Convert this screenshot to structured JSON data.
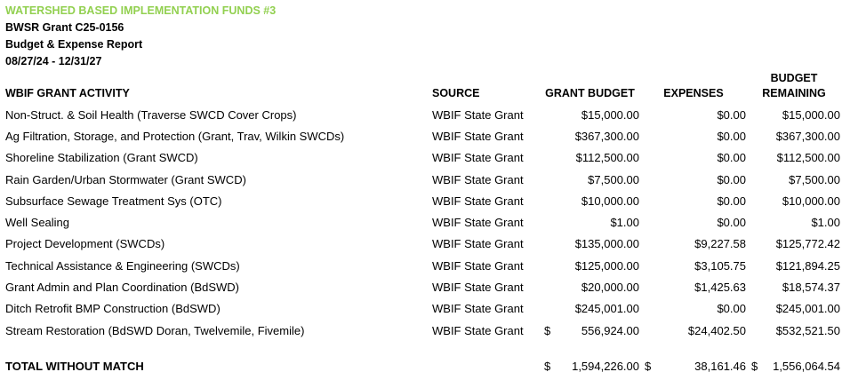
{
  "report": {
    "title": "WATERSHED BASED IMPLEMENTATION FUNDS #3",
    "grant_number": "BWSR Grant C25-0156",
    "report_name": "Budget & Expense Report",
    "date_range": "08/27/24 - 12/31/27"
  },
  "colors": {
    "title_green": "#92D050",
    "text": "#000000",
    "background": "#FFFFFF"
  },
  "table": {
    "columns": {
      "activity": "WBIF GRANT ACTIVITY",
      "source": "SOURCE",
      "grant_budget": "GRANT BUDGET",
      "expenses": "EXPENSES",
      "remaining_line1": "BUDGET",
      "remaining_line2": "REMAINING"
    },
    "rows": [
      {
        "activity": "Non-Struct. & Soil Health (Traverse SWCD Cover Crops)",
        "source": "WBIF State Grant",
        "grant_budget": "$15,000.00",
        "expenses": "$0.00",
        "remaining": "$15,000.00"
      },
      {
        "activity": "Ag Filtration, Storage, and Protection (Grant, Trav, Wilkin SWCDs)",
        "source": "WBIF State Grant",
        "grant_budget": "$367,300.00",
        "expenses": "$0.00",
        "remaining": "$367,300.00"
      },
      {
        "activity": "Shoreline Stabilization (Grant SWCD)",
        "source": "WBIF State Grant",
        "grant_budget": "$112,500.00",
        "expenses": "$0.00",
        "remaining": "$112,500.00"
      },
      {
        "activity": "Rain Garden/Urban Stormwater (Grant SWCD)",
        "source": "WBIF State Grant",
        "grant_budget": "$7,500.00",
        "expenses": "$0.00",
        "remaining": "$7,500.00"
      },
      {
        "activity": "Subsurface Sewage Treatment Sys (OTC)",
        "source": "WBIF State Grant",
        "grant_budget": "$10,000.00",
        "expenses": "$0.00",
        "remaining": "$10,000.00"
      },
      {
        "activity": "Well Sealing",
        "source": "WBIF State Grant",
        "grant_budget": "$1.00",
        "expenses": "$0.00",
        "remaining": "$1.00"
      },
      {
        "activity": "Project Development (SWCDs)",
        "source": "WBIF State Grant",
        "grant_budget": "$135,000.00",
        "expenses": "$9,227.58",
        "remaining": "$125,772.42"
      },
      {
        "activity": "Technical Assistance & Engineering (SWCDs)",
        "source": "WBIF State Grant",
        "grant_budget": "$125,000.00",
        "expenses": "$3,105.75",
        "remaining": "$121,894.25"
      },
      {
        "activity": "Grant Admin and Plan Coordination (BdSWD)",
        "source": "WBIF State Grant",
        "grant_budget": "$20,000.00",
        "expenses": "$1,425.63",
        "remaining": "$18,574.37"
      },
      {
        "activity": "Ditch Retrofit BMP Construction (BdSWD)",
        "source": "WBIF State Grant",
        "grant_budget": "$245,001.00",
        "expenses": "$0.00",
        "remaining": "$245,001.00"
      },
      {
        "activity": "Stream Restoration (BdSWD Doran, Twelvemile, Fivemile)",
        "source": "WBIF State Grant",
        "grant_budget_dollar": "$",
        "grant_budget_amount": "556,924.00",
        "expenses": "$24,402.50",
        "remaining": "$532,521.50"
      }
    ],
    "total": {
      "label": "TOTAL WITHOUT MATCH",
      "grant_budget_dollar": "$",
      "grant_budget_amount": "1,594,226.00",
      "expenses_dollar": "$",
      "expenses_amount": "38,161.46",
      "remaining_dollar": "$",
      "remaining_amount": "1,556,064.54"
    }
  }
}
